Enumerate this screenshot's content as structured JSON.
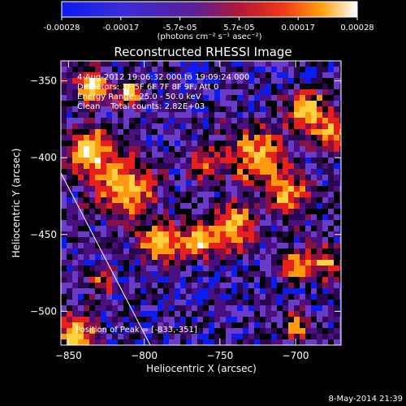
{
  "colorbar": {
    "ticks": [
      "-0.00028",
      "-0.00017",
      "-5.7e-05",
      "5.7e-05",
      "0.00017",
      "0.00028"
    ],
    "unit_label": "(photons cm⁻² s⁻¹ asec⁻²)"
  },
  "chart_data": {
    "type": "heatmap",
    "title": "Reconstructed RHESSI Image",
    "xlabel": "Heliocentric X (arcsec)",
    "ylabel": "Heliocentric Y (arcsec)",
    "xlim": [
      -855,
      -670
    ],
    "ylim": [
      -522,
      -337
    ],
    "xticks": [
      -850,
      -800,
      -750,
      -700
    ],
    "yticks": [
      -350,
      -400,
      -450,
      -500
    ],
    "value_range": [
      -0.00028,
      0.00028
    ],
    "colormap": "RHESSI thermal (blue - purple - red - orange - yellow - white)",
    "colors": {
      "neg_low": "#0a1cf0",
      "neg_mid": "#6a3ac8",
      "zero": "#4a1080",
      "pos_mid": "#e8201c",
      "pos_high": "#ff9a10",
      "peak": "#ffffff"
    },
    "annotations": {
      "time_range": "4-Aug-2012 19:06:32.000 to 19:09:24.000",
      "detectors": "Detectors: 3F 5F 6F 7F 8F 9F, Att 0",
      "energy": "Energy Range: 25.0 - 50.0 keV",
      "method": "Clean    Total counts: 2.82E+03",
      "peak": "Position of Peak = [-833,-351]"
    },
    "limb_line": {
      "x": [
        -856,
        -796
      ],
      "y": [
        -408,
        -522
      ]
    },
    "peak_position": [
      -833,
      -351
    ]
  },
  "footer": {
    "timestamp": "8-May-2014 21:39"
  }
}
